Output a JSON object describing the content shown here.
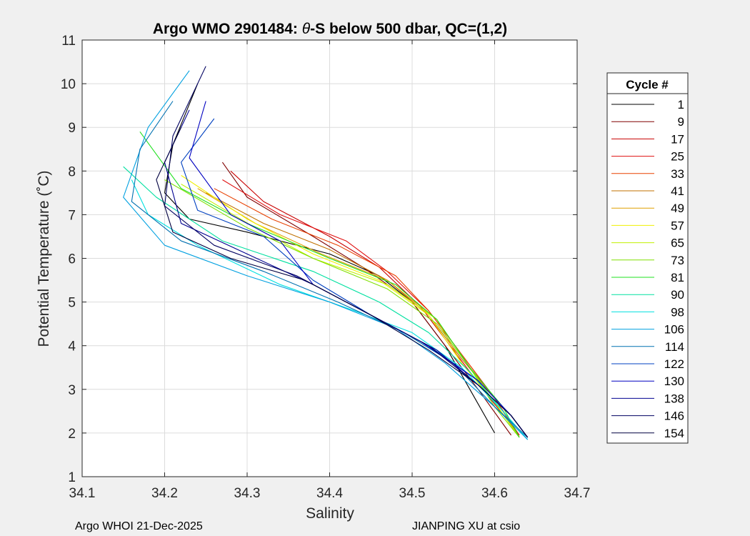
{
  "chart_data": {
    "type": "line",
    "title_prefix": "Argo WMO 2901484: ",
    "title_theta": "θ",
    "title_suffix": "-S below 500 dbar,  QC=(1,2)",
    "xlabel": "Salinity",
    "ylabel": "Potential Temperature (˚C)",
    "xlim": [
      34.1,
      34.7
    ],
    "ylim": [
      1,
      11
    ],
    "xticks": [
      34.1,
      34.2,
      34.3,
      34.4,
      34.5,
      34.6,
      34.7
    ],
    "xtick_labels": [
      "34.1",
      "34.2",
      "34.3",
      "34.4",
      "34.5",
      "34.6",
      "34.7"
    ],
    "yticks": [
      1,
      2,
      3,
      4,
      5,
      6,
      7,
      8,
      9,
      10,
      11
    ],
    "ytick_labels": [
      "1",
      "2",
      "3",
      "4",
      "5",
      "6",
      "7",
      "8",
      "9",
      "10",
      "11"
    ],
    "grid": true,
    "legend_title": "Cycle #",
    "legend_position": "right-outside",
    "legend": [
      {
        "label": "1",
        "color": "#000000"
      },
      {
        "label": "9",
        "color": "#800000"
      },
      {
        "label": "17",
        "color": "#c80000"
      },
      {
        "label": "25",
        "color": "#e01010"
      },
      {
        "label": "33",
        "color": "#e84000"
      },
      {
        "label": "41",
        "color": "#c07000"
      },
      {
        "label": "49",
        "color": "#e0a000"
      },
      {
        "label": "57",
        "color": "#f0f000"
      },
      {
        "label": "65",
        "color": "#c0f000"
      },
      {
        "label": "73",
        "color": "#80e000"
      },
      {
        "label": "81",
        "color": "#20e020"
      },
      {
        "label": "90",
        "color": "#00e0a0"
      },
      {
        "label": "98",
        "color": "#00e0e0"
      },
      {
        "label": "106",
        "color": "#00a0e0"
      },
      {
        "label": "114",
        "color": "#0070b0"
      },
      {
        "label": "122",
        "color": "#0040c0"
      },
      {
        "label": "130",
        "color": "#0000c0"
      },
      {
        "label": "138",
        "color": "#000090"
      },
      {
        "label": "146",
        "color": "#000060"
      },
      {
        "label": "154",
        "color": "#000040"
      }
    ],
    "series": [
      {
        "name": "1",
        "color": "#000000",
        "x": [
          34.24,
          34.21,
          34.2,
          34.23,
          34.3,
          34.4,
          34.46,
          34.5,
          34.54,
          34.57,
          34.6
        ],
        "y": [
          10.0,
          8.6,
          7.5,
          6.9,
          6.6,
          6.1,
          5.6,
          5.0,
          4.0,
          3.0,
          2.0
        ]
      },
      {
        "name": "9",
        "color": "#800000",
        "x": [
          34.27,
          34.3,
          34.38,
          34.44,
          34.5,
          34.54,
          34.58,
          34.62
        ],
        "y": [
          8.2,
          7.4,
          6.5,
          5.8,
          5.0,
          4.0,
          3.0,
          1.95
        ]
      },
      {
        "name": "17",
        "color": "#c80000",
        "x": [
          34.28,
          34.32,
          34.4,
          34.46,
          34.51,
          34.55,
          34.59,
          34.63
        ],
        "y": [
          8.0,
          7.3,
          6.5,
          5.8,
          4.9,
          3.9,
          2.9,
          1.95
        ]
      },
      {
        "name": "25",
        "color": "#e01010",
        "x": [
          34.27,
          34.34,
          34.42,
          34.47,
          34.52,
          34.56,
          34.6,
          34.63
        ],
        "y": [
          7.8,
          7.0,
          6.4,
          5.7,
          4.8,
          3.8,
          2.8,
          1.95
        ]
      },
      {
        "name": "33",
        "color": "#e84000",
        "x": [
          34.26,
          34.33,
          34.41,
          34.48,
          34.52,
          34.56,
          34.6,
          34.63
        ],
        "y": [
          7.6,
          6.9,
          6.3,
          5.6,
          4.8,
          3.8,
          2.8,
          1.9
        ]
      },
      {
        "name": "41",
        "color": "#c07000",
        "x": [
          34.25,
          34.32,
          34.4,
          34.47,
          34.52,
          34.56,
          34.6,
          34.63
        ],
        "y": [
          7.5,
          6.8,
          6.2,
          5.5,
          4.7,
          3.7,
          2.8,
          1.9
        ]
      },
      {
        "name": "49",
        "color": "#e0a000",
        "x": [
          34.24,
          34.31,
          34.39,
          34.47,
          34.53,
          34.56,
          34.6,
          34.63
        ],
        "y": [
          7.6,
          6.8,
          6.1,
          5.5,
          4.6,
          3.6,
          2.7,
          1.9
        ]
      },
      {
        "name": "57",
        "color": "#f0f000",
        "x": [
          34.22,
          34.3,
          34.38,
          34.46,
          34.52,
          34.56,
          34.6,
          34.63
        ],
        "y": [
          7.9,
          6.9,
          6.1,
          5.5,
          4.7,
          3.6,
          2.7,
          1.9
        ]
      },
      {
        "name": "65",
        "color": "#c0f000",
        "x": [
          34.22,
          34.31,
          34.38,
          34.47,
          34.53,
          34.57,
          34.6,
          34.63
        ],
        "y": [
          7.7,
          6.7,
          6.0,
          5.4,
          4.6,
          3.5,
          2.7,
          1.9
        ]
      },
      {
        "name": "73",
        "color": "#80e000",
        "x": [
          34.2,
          34.3,
          34.38,
          34.47,
          34.53,
          34.57,
          34.6,
          34.63
        ],
        "y": [
          7.8,
          6.7,
          6.0,
          5.3,
          4.5,
          3.5,
          2.6,
          1.9
        ]
      },
      {
        "name": "81",
        "color": "#20e020",
        "x": [
          34.17,
          34.22,
          34.3,
          34.4,
          34.48,
          34.53,
          34.57,
          34.61,
          34.63
        ],
        "y": [
          8.9,
          7.6,
          6.8,
          6.0,
          5.4,
          4.6,
          3.5,
          2.6,
          1.9
        ]
      },
      {
        "name": "90",
        "color": "#00e0a0",
        "x": [
          34.15,
          34.19,
          34.27,
          34.38,
          34.46,
          34.52,
          34.57,
          34.61,
          34.64
        ],
        "y": [
          8.1,
          7.4,
          6.4,
          5.7,
          5.0,
          4.3,
          3.4,
          2.5,
          1.85
        ]
      },
      {
        "name": "98",
        "color": "#00e0e0",
        "x": [
          34.16,
          34.18,
          34.24,
          34.34,
          34.43,
          34.5,
          34.56,
          34.61,
          34.64
        ],
        "y": [
          7.8,
          7.0,
          6.3,
          5.4,
          4.8,
          4.3,
          3.5,
          2.5,
          1.85
        ]
      },
      {
        "name": "106",
        "color": "#00a0e0",
        "x": [
          34.23,
          34.18,
          34.15,
          34.2,
          34.3,
          34.4,
          34.48,
          34.54,
          34.6,
          34.64
        ],
        "y": [
          10.3,
          9.0,
          7.4,
          6.3,
          5.6,
          5.0,
          4.4,
          3.6,
          2.6,
          1.85
        ]
      },
      {
        "name": "114",
        "color": "#0070b0",
        "x": [
          34.21,
          34.17,
          34.16,
          34.22,
          34.32,
          34.41,
          34.49,
          34.55,
          34.6,
          34.64
        ],
        "y": [
          9.6,
          8.5,
          7.3,
          6.4,
          5.7,
          5.0,
          4.3,
          3.6,
          2.6,
          1.9
        ]
      },
      {
        "name": "122",
        "color": "#0040c0",
        "x": [
          34.26,
          34.22,
          34.24,
          34.32,
          34.38,
          34.45,
          34.52,
          34.58,
          34.62,
          34.64
        ],
        "y": [
          9.2,
          8.2,
          7.1,
          6.5,
          5.5,
          4.7,
          4.0,
          3.2,
          2.4,
          1.9
        ]
      },
      {
        "name": "130",
        "color": "#0000c0",
        "x": [
          34.25,
          34.23,
          34.28,
          34.34,
          34.38,
          34.44,
          34.51,
          34.58,
          34.62,
          34.64
        ],
        "y": [
          9.6,
          8.3,
          7.0,
          6.4,
          5.4,
          4.8,
          4.1,
          3.2,
          2.4,
          1.9
        ]
      },
      {
        "name": "138",
        "color": "#000090",
        "x": [
          34.23,
          34.2,
          34.22,
          34.3,
          34.38,
          34.46,
          34.53,
          34.58,
          34.62,
          34.64
        ],
        "y": [
          9.4,
          8.2,
          6.8,
          6.1,
          5.4,
          4.6,
          3.9,
          3.1,
          2.4,
          1.9
        ]
      },
      {
        "name": "146",
        "color": "#000060",
        "x": [
          34.25,
          34.21,
          34.2,
          34.26,
          34.36,
          34.44,
          34.52,
          34.58,
          34.62,
          34.64
        ],
        "y": [
          10.4,
          8.8,
          7.2,
          6.3,
          5.6,
          4.8,
          4.0,
          3.1,
          2.4,
          1.9
        ]
      },
      {
        "name": "154",
        "color": "#000040",
        "x": [
          34.22,
          34.19,
          34.21,
          34.28,
          34.37,
          34.45,
          34.52,
          34.58,
          34.62,
          34.64
        ],
        "y": [
          9.0,
          7.8,
          6.6,
          6.0,
          5.5,
          4.7,
          3.9,
          3.1,
          2.4,
          1.9
        ]
      }
    ]
  },
  "footer": {
    "left": "Argo WHOI 21-Dec-2025",
    "right": "JIANPING XU at csio"
  }
}
